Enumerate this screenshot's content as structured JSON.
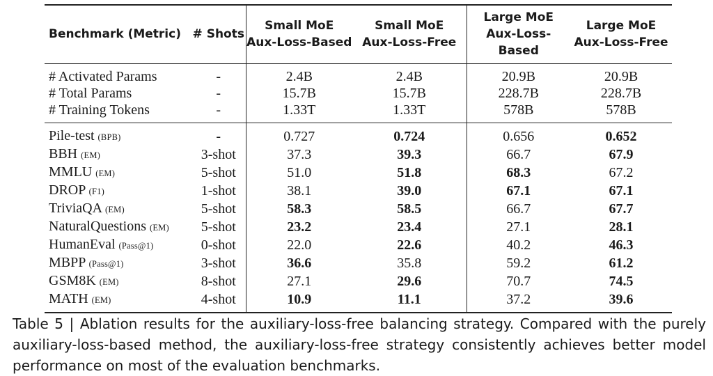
{
  "table": {
    "headers": [
      {
        "line1": "Benchmark (Metric)",
        "line2": ""
      },
      {
        "line1": "# Shots",
        "line2": ""
      },
      {
        "line1": "Small MoE",
        "line2": "Aux-Loss-Based"
      },
      {
        "line1": "Small MoE",
        "line2": "Aux-Loss-Free"
      },
      {
        "line1": "Large MoE",
        "line2": "Aux-Loss-Based"
      },
      {
        "line1": "Large MoE",
        "line2": "Aux-Loss-Free"
      }
    ],
    "params_rows": [
      {
        "name": "# Activated Params",
        "metric": "",
        "shots": "-",
        "values": [
          "2.4B",
          "2.4B",
          "20.9B",
          "20.9B"
        ],
        "bold": [
          false,
          false,
          false,
          false
        ]
      },
      {
        "name": "# Total Params",
        "metric": "",
        "shots": "-",
        "values": [
          "15.7B",
          "15.7B",
          "228.7B",
          "228.7B"
        ],
        "bold": [
          false,
          false,
          false,
          false
        ]
      },
      {
        "name": "# Training Tokens",
        "metric": "",
        "shots": "-",
        "values": [
          "1.33T",
          "1.33T",
          "578B",
          "578B"
        ],
        "bold": [
          false,
          false,
          false,
          false
        ]
      }
    ],
    "benchmark_rows": [
      {
        "name": "Pile-test",
        "metric": "(BPB)",
        "shots": "-",
        "values": [
          "0.727",
          "0.724",
          "0.656",
          "0.652"
        ],
        "bold": [
          false,
          true,
          false,
          true
        ]
      },
      {
        "name": "BBH",
        "metric": "(EM)",
        "shots": "3-shot",
        "values": [
          "37.3",
          "39.3",
          "66.7",
          "67.9"
        ],
        "bold": [
          false,
          true,
          false,
          true
        ]
      },
      {
        "name": "MMLU",
        "metric": "(EM)",
        "shots": "5-shot",
        "values": [
          "51.0",
          "51.8",
          "68.3",
          "67.2"
        ],
        "bold": [
          false,
          true,
          true,
          false
        ]
      },
      {
        "name": "DROP",
        "metric": "(F1)",
        "shots": "1-shot",
        "values": [
          "38.1",
          "39.0",
          "67.1",
          "67.1"
        ],
        "bold": [
          false,
          true,
          true,
          true
        ]
      },
      {
        "name": "TriviaQA",
        "metric": "(EM)",
        "shots": "5-shot",
        "values": [
          "58.3",
          "58.5",
          "66.7",
          "67.7"
        ],
        "bold": [
          true,
          true,
          false,
          true
        ]
      },
      {
        "name": "NaturalQuestions",
        "metric": "(EM)",
        "shots": "5-shot",
        "values": [
          "23.2",
          "23.4",
          "27.1",
          "28.1"
        ],
        "bold": [
          true,
          true,
          false,
          true
        ]
      },
      {
        "name": "HumanEval",
        "metric": "(Pass@1)",
        "shots": "0-shot",
        "values": [
          "22.0",
          "22.6",
          "40.2",
          "46.3"
        ],
        "bold": [
          false,
          true,
          false,
          true
        ]
      },
      {
        "name": "MBPP",
        "metric": "(Pass@1)",
        "shots": "3-shot",
        "values": [
          "36.6",
          "35.8",
          "59.2",
          "61.2"
        ],
        "bold": [
          true,
          false,
          false,
          true
        ]
      },
      {
        "name": "GSM8K",
        "metric": "(EM)",
        "shots": "8-shot",
        "values": [
          "27.1",
          "29.6",
          "70.7",
          "74.5"
        ],
        "bold": [
          false,
          true,
          false,
          true
        ]
      },
      {
        "name": "MATH",
        "metric": "(EM)",
        "shots": "4-shot",
        "values": [
          "10.9",
          "11.1",
          "37.2",
          "39.6"
        ],
        "bold": [
          true,
          true,
          false,
          true
        ]
      }
    ]
  },
  "caption": "Table 5 | Ablation results for the auxiliary-loss-free balancing strategy. Compared with the purely auxiliary-loss-based method, the auxiliary-loss-free strategy consistently achieves better model performance on most of the evaluation benchmarks."
}
